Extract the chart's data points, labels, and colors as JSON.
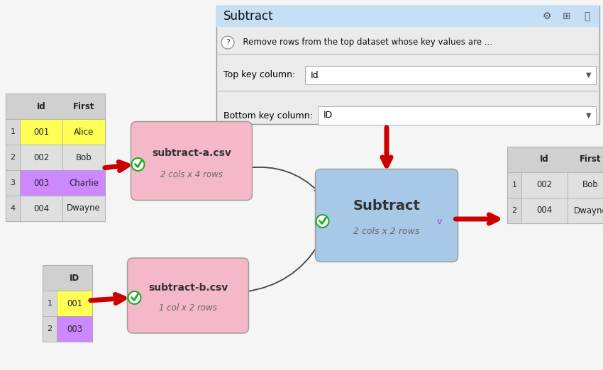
{
  "bg_color": "#f0f0f0",
  "panel_title": "Subtract",
  "panel_help": "  Remove rows from the top dataset whose key values are ...",
  "panel_top_key_label": "Top key column:",
  "panel_top_key_value": "Id",
  "panel_bottom_key_label": "Bottom key column:",
  "panel_bottom_key_value": "ID",
  "table_a_cols": [
    "Id",
    "First"
  ],
  "table_a_rows": [
    [
      "1",
      "001",
      "Alice"
    ],
    [
      "2",
      "002",
      "Bob"
    ],
    [
      "3",
      "003",
      "Charlie"
    ],
    [
      "4",
      "004",
      "Dwayne"
    ]
  ],
  "table_a_row_colors": [
    "#ffff55",
    "#e0e0e0",
    "#cc88ff",
    "#e0e0e0"
  ],
  "table_b_cols": [
    "ID"
  ],
  "table_b_rows": [
    [
      "1",
      "001"
    ],
    [
      "2",
      "003"
    ]
  ],
  "table_b_row_colors": [
    "#ffff55",
    "#cc88ff"
  ],
  "table_out_cols": [
    "Id",
    "First"
  ],
  "table_out_rows": [
    [
      "1",
      "002",
      "Bob"
    ],
    [
      "2",
      "004",
      "Dwayne"
    ]
  ],
  "table_out_row_colors": [
    "#e0e0e0",
    "#e0e0e0"
  ],
  "node_a_label": "subtract-a.csv",
  "node_a_sublabel": "2 cols x 4 rows",
  "node_a_color": "#f4b8c8",
  "node_b_label": "subtract-b.csv",
  "node_b_sublabel": "1 col x 2 rows",
  "node_b_color": "#f4b8c8",
  "node_sub_label": "Subtract",
  "node_sub_sublabel": "2 cols x 2 rows",
  "node_sub_color": "#a8c8e8",
  "checkmark_color": "#22aa22",
  "arrow_color": "#cc0000",
  "connector_color": "#444444",
  "v_color": "#9944bb"
}
